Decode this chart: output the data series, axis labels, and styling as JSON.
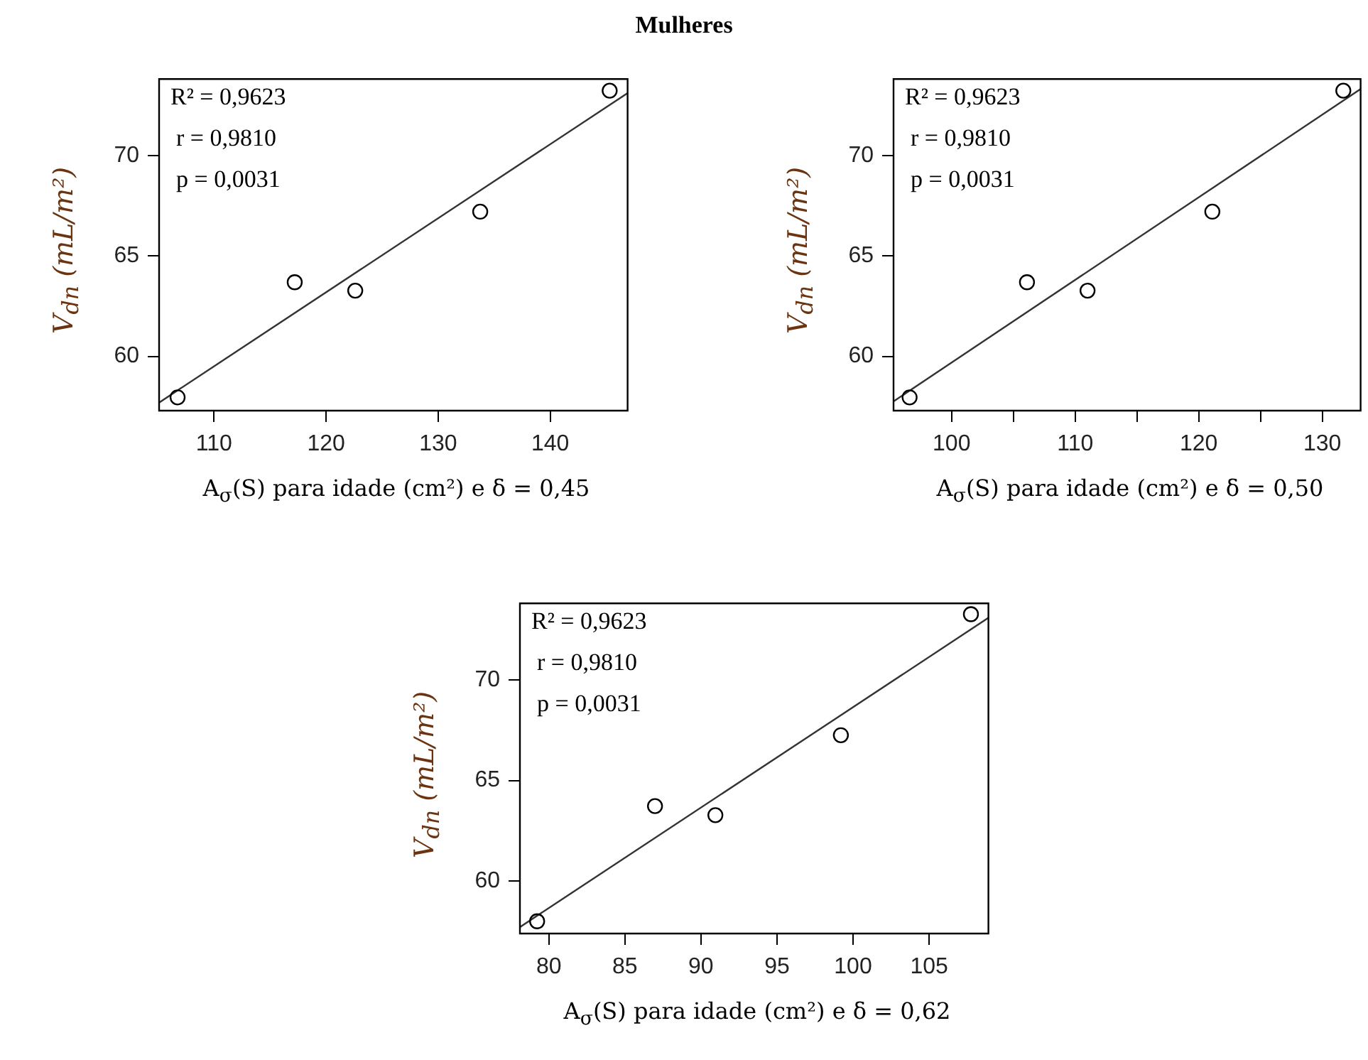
{
  "chart_data": [
    {
      "type": "scatter",
      "title": "Mulheres",
      "xlabel": "A$_{σ}$(S) para idade (cm²) e δ = 0,45",
      "ylabel": "V$_{dn}$ (mL/m²)",
      "marker": "circle",
      "annotations": [
        "R² = 0,9623",
        "r = 0,9810",
        "p = 0,0031"
      ],
      "xlim": [
        105.1,
        146.9
      ],
      "ylim": [
        57.3,
        73.8
      ],
      "xticks": [
        110,
        120,
        130,
        140
      ],
      "yticks": [
        60,
        65,
        70
      ],
      "series": [
        {
          "type": "scatter",
          "color": "#000000",
          "x": [
            106.75,
            117.2,
            122.6,
            133.75,
            145.3
          ],
          "values": [
            57.96,
            63.69,
            63.27,
            67.2,
            73.22
          ]
        },
        {
          "type": "line",
          "marker": "none",
          "color": "#333333",
          "x": [
            105.1,
            146.9
          ],
          "values": [
            57.7,
            73.1
          ]
        }
      ]
    },
    {
      "type": "scatter",
      "xlabel": "A$_{σ}$(S) para idade (cm²) e δ = 0,50",
      "ylabel": "V$_{dn}$ (mL/m²)",
      "marker": "circle",
      "annotations": [
        "R² = 0,9623",
        "r = 0,9810",
        "p = 0,0031"
      ],
      "xlim": [
        95.3,
        133.1
      ],
      "ylim": [
        57.3,
        73.8
      ],
      "xticks": [
        100,
        {
          "value": 105,
          "label": null
        },
        110,
        {
          "value": 115,
          "label": null
        },
        120,
        {
          "value": 125,
          "label": null
        },
        130
      ],
      "yticks": [
        60,
        65,
        70
      ],
      "series": [
        {
          "type": "scatter",
          "color": "#000000",
          "x": [
            96.6,
            106.1,
            111.0,
            121.1,
            131.7
          ],
          "values": [
            57.96,
            63.69,
            63.27,
            67.2,
            73.22
          ]
        },
        {
          "type": "line",
          "marker": "none",
          "color": "#333333",
          "x": [
            95.3,
            133.1
          ],
          "values": [
            57.76,
            73.3
          ]
        }
      ]
    },
    {
      "type": "scatter",
      "xlabel": "A$_{σ}$(S) para idade (cm²) e δ = 0,62",
      "ylabel": "V$_{dn}$ (mL/m²)",
      "marker": "circle",
      "annotations": [
        "R² = 0,9623",
        "r = 0,9810",
        "p = 0,0031"
      ],
      "xlim": [
        78.1,
        108.9
      ],
      "ylim": [
        57.4,
        73.8
      ],
      "xticks": [
        80,
        85,
        90,
        95,
        100,
        105
      ],
      "yticks": [
        60,
        65,
        70
      ],
      "series": [
        {
          "type": "scatter",
          "color": "#000000",
          "x": [
            79.23,
            86.98,
            90.95,
            99.2,
            107.75
          ],
          "values": [
            58.01,
            63.73,
            63.28,
            67.25,
            73.26
          ]
        },
        {
          "type": "line",
          "marker": "none",
          "color": "#333333",
          "x": [
            78.1,
            108.9
          ],
          "values": [
            57.72,
            73.08
          ]
        }
      ]
    }
  ]
}
